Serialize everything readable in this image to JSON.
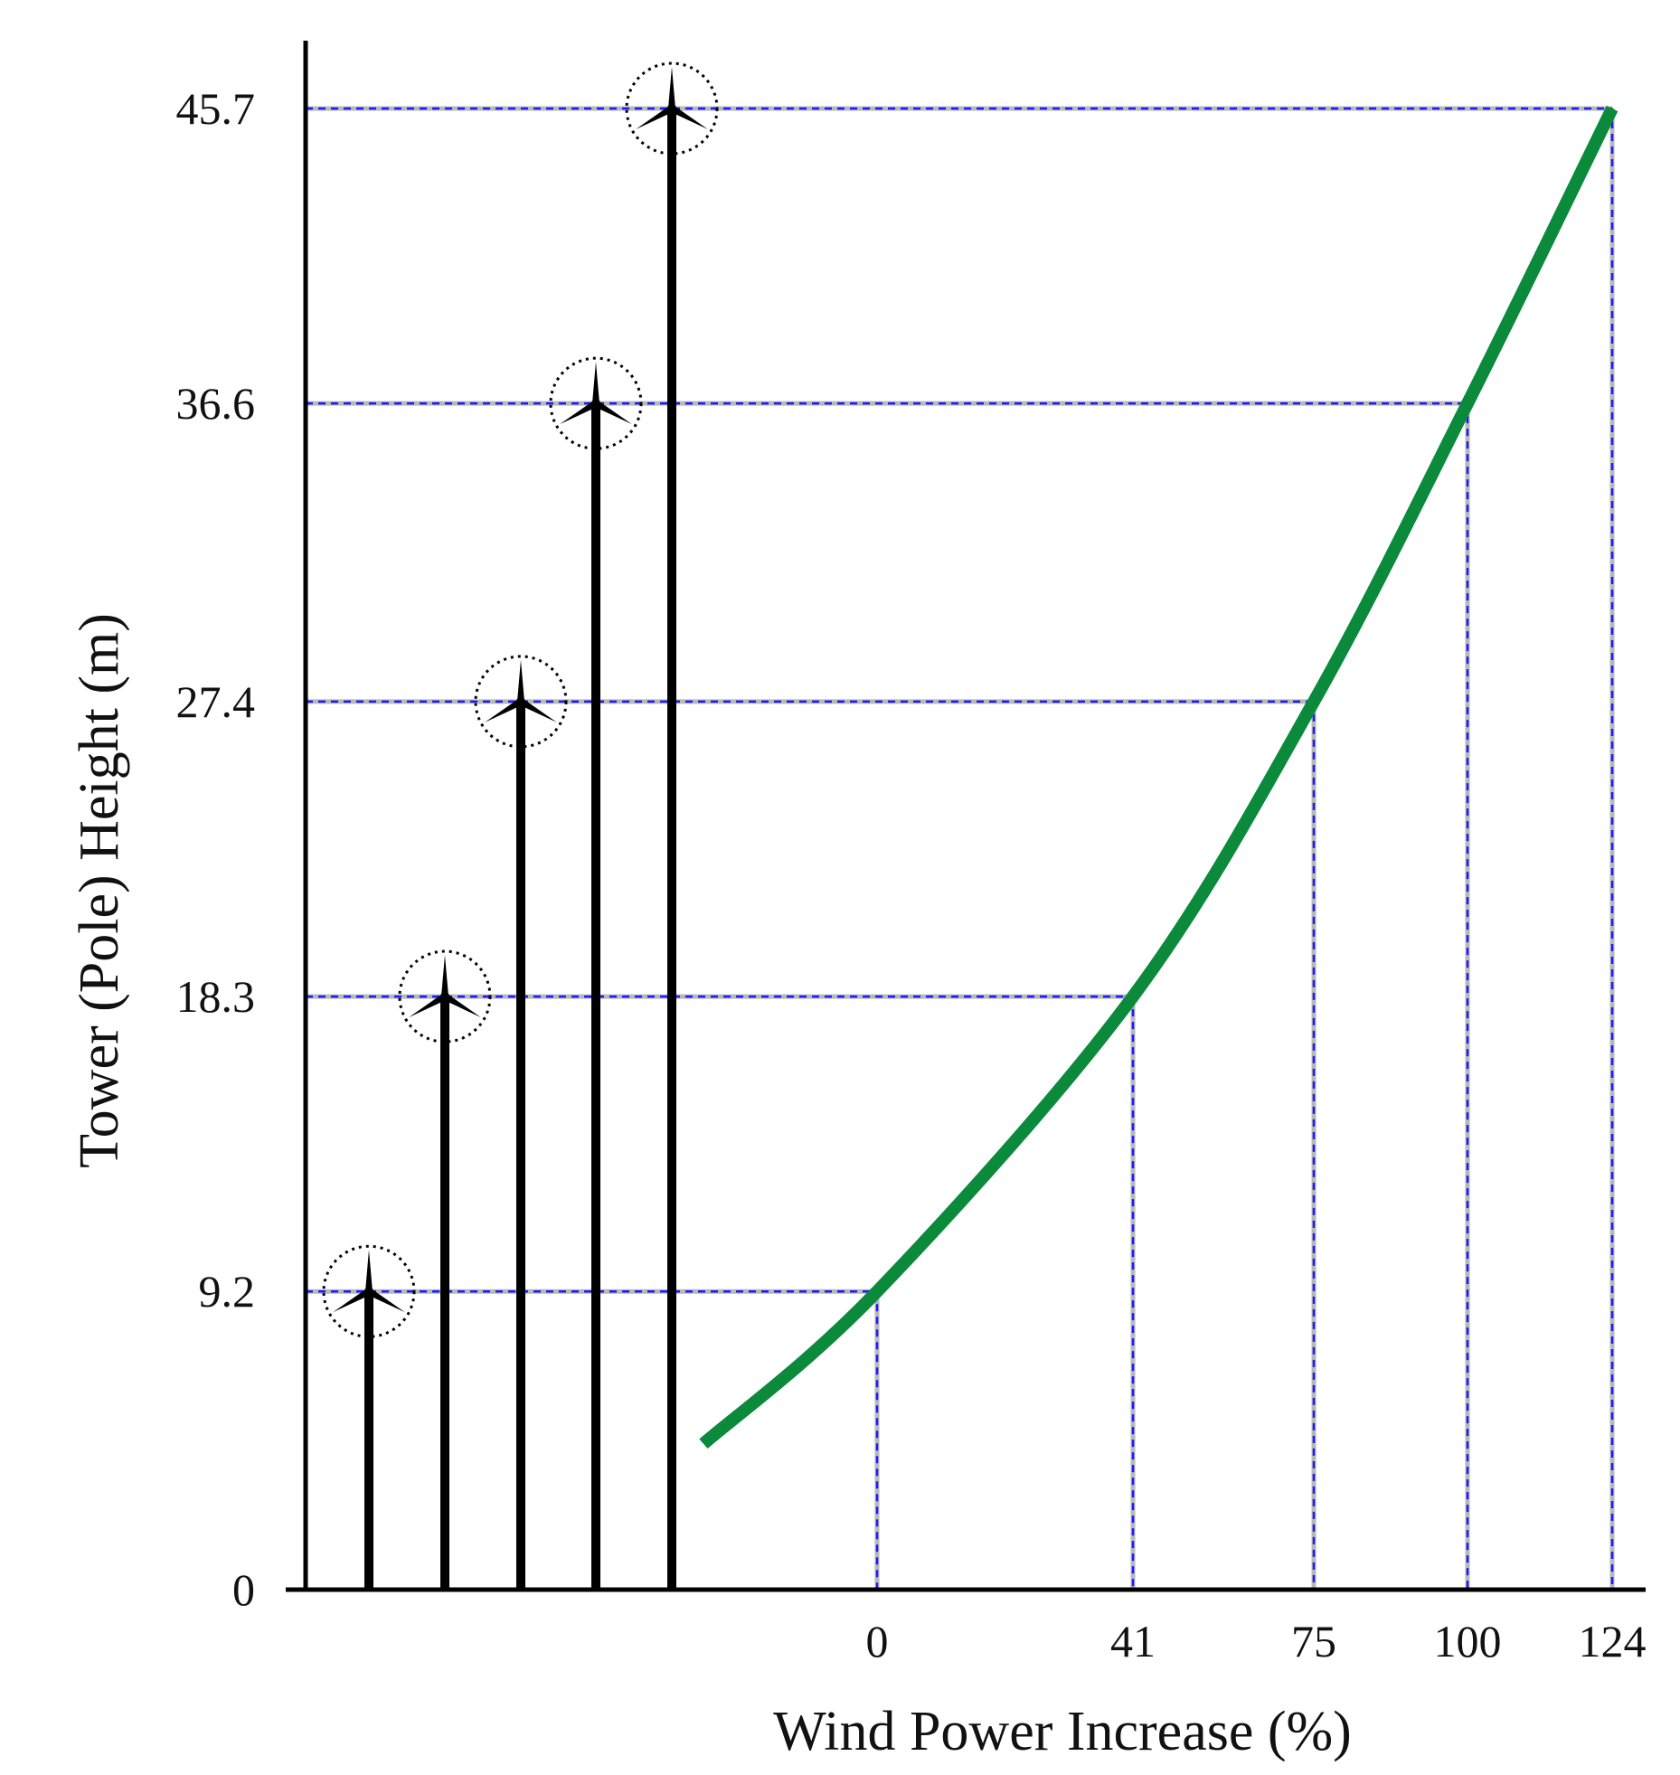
{
  "chart_data": {
    "type": "line",
    "title": "",
    "xlabel": "Wind Power Increase (%)",
    "ylabel": "Tower (Pole) Height (m)",
    "x_ticks": [
      "0",
      "41",
      "75",
      "100",
      "124"
    ],
    "y_ticks": [
      "0",
      "9.2",
      "18.3",
      "27.4",
      "36.6",
      "45.7"
    ],
    "ylim": [
      0,
      45.7
    ],
    "series": [
      {
        "color": "#0a8a3a",
        "points": [
          {
            "x": 0,
            "y": 9.2
          },
          {
            "x": 41,
            "y": 18.3
          },
          {
            "x": 75,
            "y": 27.4
          },
          {
            "x": 100,
            "y": 36.6
          },
          {
            "x": 124,
            "y": 45.7
          }
        ],
        "extends_below_first_point_to_y": 4.5
      }
    ],
    "turbine_heights": [
      9.2,
      18.3,
      27.4,
      36.6,
      45.7
    ],
    "guide_line_color": "#1a1aff",
    "grid": false
  }
}
